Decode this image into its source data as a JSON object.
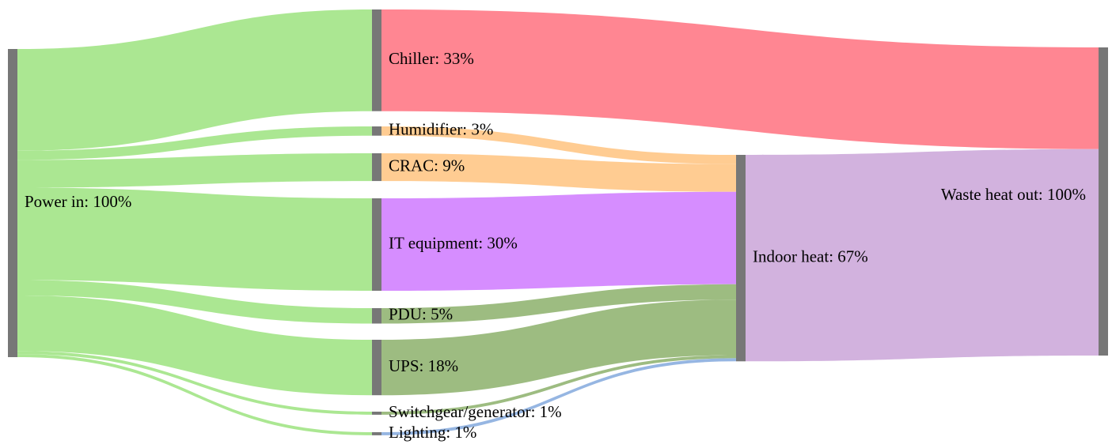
{
  "chart_data": {
    "type": "sankey",
    "nodes": [
      "Power in: 100%",
      "Chiller: 33%",
      "Humidifier: 3%",
      "CRAC: 9%",
      "IT equipment: 30%",
      "PDU: 5%",
      "UPS: 18%",
      "Switchgear/generator: 1%",
      "Lighting: 1%",
      "Indoor heat: 67%",
      "Waste heat out: 100%"
    ],
    "node_color": "#777777",
    "links": [
      {
        "source": 0,
        "target": 1,
        "value": 33,
        "color": "#a6e68c"
      },
      {
        "source": 0,
        "target": 2,
        "value": 3,
        "color": "#a6e68c"
      },
      {
        "source": 0,
        "target": 3,
        "value": 9,
        "color": "#a6e68c"
      },
      {
        "source": 0,
        "target": 4,
        "value": 30,
        "color": "#a6e68c"
      },
      {
        "source": 0,
        "target": 5,
        "value": 5,
        "color": "#a6e68c"
      },
      {
        "source": 0,
        "target": 6,
        "value": 18,
        "color": "#a6e68c"
      },
      {
        "source": 0,
        "target": 7,
        "value": 1,
        "color": "#a6e68c"
      },
      {
        "source": 0,
        "target": 8,
        "value": 1,
        "color": "#a6e68c"
      },
      {
        "source": 1,
        "target": 10,
        "value": 33,
        "color": "#ff7f8c"
      },
      {
        "source": 2,
        "target": 9,
        "value": 3,
        "color": "#ffc98c"
      },
      {
        "source": 3,
        "target": 9,
        "value": 9,
        "color": "#ffc98c"
      },
      {
        "source": 4,
        "target": 9,
        "value": 30,
        "color": "#d487ff"
      },
      {
        "source": 5,
        "target": 9,
        "value": 5,
        "color": "#98b87a"
      },
      {
        "source": 6,
        "target": 9,
        "value": 18,
        "color": "#98b87a"
      },
      {
        "source": 7,
        "target": 9,
        "value": 1,
        "color": "#98b87a"
      },
      {
        "source": 8,
        "target": 9,
        "value": 1,
        "color": "#90b2e0"
      },
      {
        "source": 9,
        "target": 10,
        "value": 67,
        "color": "#d0aedc"
      }
    ]
  }
}
